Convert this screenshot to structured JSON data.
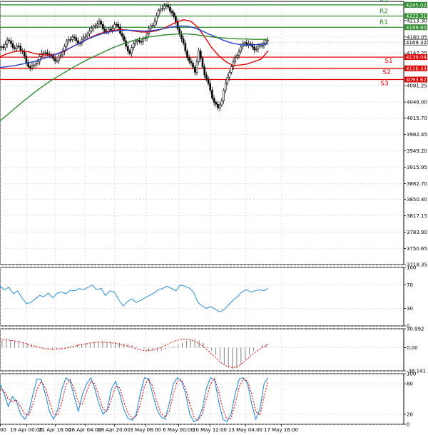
{
  "chart_data": [
    {
      "type": "candlestick",
      "panel": "price",
      "ylim": [
        3718.35,
        4252
      ],
      "y_ticks": [
        "4213.30",
        "4180.05",
        "4147.25",
        "4114.05",
        "4081.25",
        "4048.00",
        "4015.70",
        "3982.45",
        "3949.20",
        "3915.95",
        "3882.70",
        "3850.40",
        "3817.15",
        "3783.90",
        "3750.65",
        "3718.35"
      ],
      "x_ticks": [
        "00",
        "19 Apr 00:00",
        "21 Apr 16:00",
        "26 Apr 04:00",
        "28 Apr 20:00",
        "3 May 08:00",
        "6 May 00:00",
        "10 May 12:00",
        "13 May 04:00",
        "17 May 16:00"
      ],
      "current_price": "4169.32",
      "resistance_levels": [
        {
          "name": "R3",
          "value": 4245.02,
          "label": "4245.02",
          "color": "#2e8b2e"
        },
        {
          "name": "R2",
          "value": 4222.31,
          "label": "4222.31",
          "color": "#2e8b2e"
        },
        {
          "name": "R1",
          "value": 4199.6,
          "label": "4199.60",
          "color": "#2e8b2e"
        }
      ],
      "support_levels": [
        {
          "name": "S1",
          "value": 4139.04,
          "label": "4139.04",
          "color": "#e00000"
        },
        {
          "name": "S2",
          "value": 4116.33,
          "label": "4116.33",
          "color": "#e00000"
        },
        {
          "name": "S3",
          "value": 4093.62,
          "label": "4093.62",
          "color": "#e00000"
        }
      ],
      "price_path": [
        4160,
        4172,
        4168,
        4155,
        4162,
        4150,
        4128,
        4118,
        4122,
        4132,
        4145,
        4150,
        4142,
        4138,
        4130,
        4145,
        4160,
        4175,
        4180,
        4172,
        4168,
        4178,
        4188,
        4195,
        4205,
        4210,
        4198,
        4190,
        4195,
        4205,
        4200,
        4182,
        4160,
        4148,
        4165,
        4175,
        4168,
        4180,
        4195,
        4205,
        4222,
        4238,
        4243,
        4240,
        4230,
        4210,
        4188,
        4165,
        4140,
        4125,
        4110,
        4150,
        4120,
        4095,
        4072,
        4048,
        4035,
        4052,
        4085,
        4110,
        4128,
        4145,
        4158,
        4170,
        4165,
        4160,
        4155,
        4162,
        4168,
        4172
      ],
      "series": [
        {
          "name": "ma-fast",
          "color": "#e00000",
          "values": [
            4140,
            4146,
            4150,
            4152,
            4150,
            4146,
            4144,
            4143,
            4145,
            4150,
            4158,
            4166,
            4173,
            4180,
            4186,
            4190,
            4193,
            4195,
            4194,
            4192,
            4190,
            4190,
            4192,
            4196,
            4203,
            4210,
            4215,
            4212,
            4200,
            4180,
            4158,
            4142,
            4130,
            4122,
            4123,
            4125,
            4130,
            4135,
            4152
          ]
        },
        {
          "name": "ma-mid",
          "color": "#2244cc",
          "values": [
            4118,
            4120,
            4122,
            4125,
            4128,
            4132,
            4137,
            4142,
            4148,
            4155,
            4162,
            4170,
            4177,
            4183,
            4188,
            4191,
            4193,
            4194,
            4193,
            4192,
            4192,
            4194,
            4197,
            4200,
            4202,
            4202,
            4199,
            4193,
            4186,
            4180,
            4173,
            4168,
            4165,
            4163,
            4164,
            4165,
            4166
          ]
        },
        {
          "name": "ma-slow",
          "color": "#2e8b2e",
          "values": [
            4010,
            4022,
            4035,
            4048,
            4060,
            4072,
            4083,
            4093,
            4102,
            4111,
            4120,
            4128,
            4136,
            4143,
            4150,
            4157,
            4163,
            4168,
            4173,
            4177,
            4180,
            4182,
            4184,
            4185,
            4186,
            4186,
            4185,
            4183,
            4181,
            4179,
            4178,
            4177,
            4176,
            4176,
            4175,
            4175,
            4175
          ]
        }
      ]
    },
    {
      "type": "line",
      "panel": "oscillator-1",
      "ylim": [
        0,
        100
      ],
      "y_ticks": [
        "100",
        "70",
        "30",
        "0"
      ],
      "series": [
        {
          "name": "osc-1",
          "color": "#2a8fd6",
          "values": [
            68,
            62,
            66,
            55,
            60,
            48,
            38,
            40,
            46,
            52,
            50,
            56,
            48,
            56,
            58,
            55,
            61,
            60,
            64,
            62,
            66,
            70,
            62,
            64,
            52,
            60,
            58,
            45,
            34,
            42,
            46,
            40,
            44,
            48,
            52,
            56,
            62,
            64,
            68,
            64,
            60,
            70,
            68,
            65,
            58,
            40,
            34,
            30,
            33,
            28,
            24,
            28,
            36,
            44,
            50,
            58,
            62,
            58,
            60,
            62,
            60,
            64
          ]
        }
      ]
    },
    {
      "type": "bar",
      "panel": "oscillator-2",
      "ylim": [
        -38.141,
        30.992
      ],
      "y_ticks": [
        "30.992",
        "0.00",
        "-38.141"
      ],
      "values": [
        12,
        13,
        12,
        11,
        10,
        9,
        7,
        5,
        2,
        0,
        -1,
        -3,
        -4,
        -3,
        -2,
        -1,
        1,
        3,
        5,
        6,
        7,
        8,
        9,
        9,
        10,
        10,
        9,
        9,
        8,
        7,
        6,
        4,
        2,
        0,
        -2,
        -4,
        -5,
        -6,
        -5,
        -3,
        -1,
        2,
        5,
        8,
        11,
        13,
        14,
        12,
        8,
        2,
        -5,
        -12,
        -20,
        -27,
        -33,
        -36,
        -34,
        -28,
        -20,
        -12,
        -6,
        0,
        4,
        6
      ],
      "series": [
        {
          "name": "signal",
          "color": "#e00000",
          "values": [
            14,
            13,
            12,
            11,
            9,
            7,
            4,
            2,
            0,
            -2,
            -3,
            -3,
            -2,
            -1,
            1,
            3,
            5,
            6,
            8,
            9,
            9,
            9,
            8,
            7,
            5,
            3,
            1,
            -2,
            -4,
            -5,
            -4,
            -2,
            1,
            5,
            9,
            12,
            14,
            14,
            12,
            8,
            3,
            -4,
            -12,
            -20,
            -27,
            -31,
            -33,
            -31,
            -25,
            -18,
            -10,
            -4,
            1,
            5
          ]
        }
      ]
    },
    {
      "type": "line",
      "panel": "oscillator-3",
      "ylim": [
        0,
        100
      ],
      "y_ticks": [
        "100",
        "80",
        "20",
        "0"
      ],
      "series": [
        {
          "name": "main",
          "color": "#2a8fd6",
          "values": [
            80,
            60,
            35,
            55,
            45,
            20,
            10,
            25,
            60,
            90,
            88,
            60,
            25,
            10,
            30,
            70,
            92,
            85,
            55,
            25,
            60,
            80,
            92,
            70,
            40,
            20,
            30,
            70,
            85,
            60,
            30,
            12,
            8,
            20,
            60,
            92,
            90,
            60,
            30,
            15,
            10,
            40,
            80,
            92,
            85,
            60,
            20,
            5,
            10,
            30,
            70,
            92,
            88,
            45,
            10,
            5,
            20,
            60,
            90,
            92,
            80,
            40,
            10,
            30,
            80,
            92
          ]
        },
        {
          "name": "signal",
          "color": "#e00000",
          "values": [
            70,
            65,
            50,
            45,
            48,
            35,
            20,
            18,
            40,
            70,
            85,
            72,
            45,
            20,
            18,
            45,
            78,
            88,
            70,
            42,
            40,
            65,
            85,
            80,
            55,
            30,
            25,
            50,
            75,
            72,
            45,
            22,
            12,
            15,
            40,
            75,
            90,
            75,
            45,
            22,
            14,
            25,
            60,
            85,
            88,
            70,
            40,
            15,
            8,
            20,
            50,
            80,
            90,
            65,
            30,
            10,
            12,
            40,
            75,
            90,
            85,
            60,
            25,
            18,
            55,
            85
          ]
        }
      ]
    }
  ]
}
